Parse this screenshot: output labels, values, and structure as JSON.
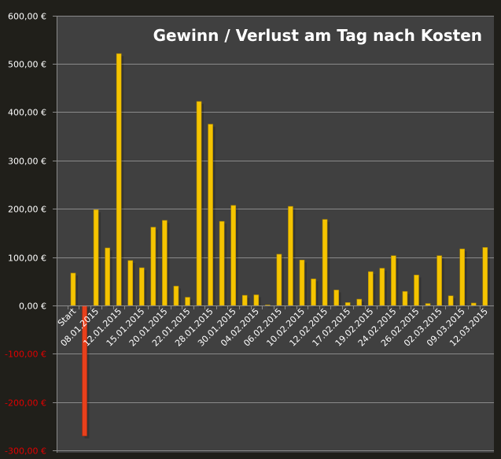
{
  "chart_data": {
    "type": "bar",
    "title": "Gewinn / Verlust am Tag nach Kosten",
    "xlabel": "",
    "ylabel": "",
    "ylim": [
      -300,
      600
    ],
    "yticks": [
      600,
      500,
      400,
      300,
      200,
      100,
      0,
      -100,
      -200,
      -300
    ],
    "ytick_labels": [
      "600,00 €",
      "500,00 €",
      "400,00 €",
      "300,00 €",
      "200,00 €",
      "100,00 €",
      "0,00 €",
      "-100,00 €",
      "-200,00 €",
      "-300,00 €"
    ],
    "grid": true,
    "legend": "none",
    "x_labels_shown": [
      "Start",
      "08.01.2015",
      "12.01.2015",
      "15.01.2015",
      "20.01.2015",
      "22.01.2015",
      "28.01.2015",
      "30.01.2015",
      "04.02.2015",
      "06.02.2015",
      "10.02.2015",
      "12.02.2015",
      "17.02.2015",
      "19.02.2015",
      "24.02.2015",
      "26.02.2015",
      "02.03.2015",
      "09.03.2015",
      "12.03.2015"
    ],
    "label_every": 2,
    "values": [
      67,
      -270,
      198,
      119,
      521,
      93,
      78,
      162,
      176,
      40,
      17,
      422,
      375,
      174,
      207,
      21,
      22,
      1,
      106,
      205,
      94,
      55,
      178,
      32,
      6,
      13,
      70,
      77,
      103,
      29,
      63,
      4,
      103,
      20,
      117,
      5,
      120
    ],
    "colors": {
      "positive": "#f5c400",
      "negative": "#e8401c",
      "plot_bg": "#404040",
      "outer_bg": "#201f1a",
      "grid": "#8a8a8a",
      "positive_axis_label": "#ffffff",
      "negative_axis_label": "#e00000"
    }
  }
}
